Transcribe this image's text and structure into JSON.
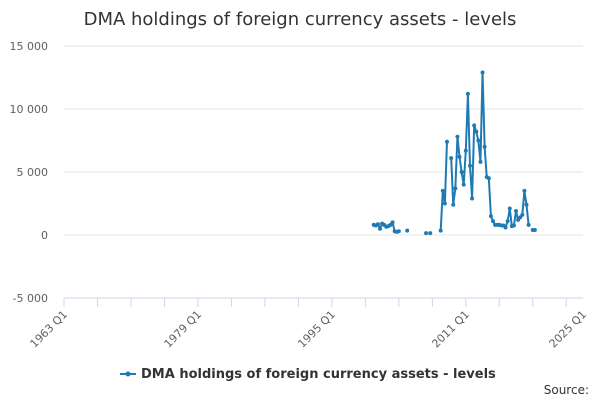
{
  "chart_data": {
    "type": "line",
    "title": "DMA holdings of foreign currency assets - levels",
    "series": [
      {
        "name": "DMA holdings of foreign currency assets - levels",
        "color": "#1f7ab4",
        "points": [
          [
            2000.0,
            800
          ],
          [
            2000.25,
            750
          ],
          [
            2000.5,
            850
          ],
          [
            2000.75,
            500
          ],
          [
            2001.0,
            900
          ],
          [
            2001.25,
            800
          ],
          [
            2001.5,
            650
          ],
          [
            2001.75,
            700
          ],
          [
            2002.0,
            800
          ],
          [
            2002.25,
            1000
          ],
          [
            2002.5,
            300
          ],
          [
            2002.75,
            250
          ],
          [
            2003.0,
            300
          ],
          [
            2004.0,
            350
          ],
          [
            2006.25,
            150
          ],
          [
            2006.75,
            150
          ],
          [
            2008.0,
            350
          ],
          [
            2008.25,
            3500
          ],
          [
            2008.5,
            2500
          ],
          [
            2008.75,
            7400
          ],
          [
            2009.25,
            6100
          ],
          [
            2009.5,
            2400
          ],
          [
            2009.75,
            3700
          ],
          [
            2010.0,
            7800
          ],
          [
            2010.25,
            6200
          ],
          [
            2010.5,
            5000
          ],
          [
            2010.75,
            4000
          ],
          [
            2011.0,
            6700
          ],
          [
            2011.25,
            11200
          ],
          [
            2011.5,
            5500
          ],
          [
            2011.75,
            2900
          ],
          [
            2012.0,
            8700
          ],
          [
            2012.25,
            8200
          ],
          [
            2012.5,
            7500
          ],
          [
            2012.75,
            5800
          ],
          [
            2013.0,
            12900
          ],
          [
            2013.25,
            7000
          ],
          [
            2013.5,
            4600
          ],
          [
            2013.75,
            4500
          ],
          [
            2014.0,
            1500
          ],
          [
            2014.25,
            1100
          ],
          [
            2014.5,
            800
          ],
          [
            2014.75,
            800
          ],
          [
            2015.0,
            800
          ],
          [
            2015.25,
            750
          ],
          [
            2015.5,
            750
          ],
          [
            2015.75,
            600
          ],
          [
            2016.0,
            1100
          ],
          [
            2016.25,
            2100
          ],
          [
            2016.5,
            700
          ],
          [
            2016.75,
            750
          ],
          [
            2017.0,
            1900
          ],
          [
            2017.25,
            1200
          ],
          [
            2017.5,
            1400
          ],
          [
            2017.75,
            1600
          ],
          [
            2018.0,
            3500
          ],
          [
            2018.25,
            2400
          ],
          [
            2018.5,
            800
          ],
          [
            2019.0,
            400
          ],
          [
            2019.25,
            400
          ]
        ]
      }
    ],
    "x_ticks": [
      {
        "label": "1963 Q1",
        "value": 1963
      },
      {
        "label": "1979 Q1",
        "value": 1979
      },
      {
        "label": "1995 Q1",
        "value": 1995
      },
      {
        "label": "2011 Q1",
        "value": 2011
      },
      {
        "label": "2025 Q1",
        "value": 2025
      }
    ],
    "y_ticks": [
      {
        "label": "-5 000",
        "value": -5000
      },
      {
        "label": "0",
        "value": 0
      },
      {
        "label": "5 000",
        "value": 5000
      },
      {
        "label": "10 000",
        "value": 10000
      },
      {
        "label": "15 000",
        "value": 15000
      }
    ],
    "xlim": [
      1963,
      2025
    ],
    "ylim": [
      -5000,
      15000
    ],
    "grid": true,
    "legend_position": "bottom",
    "source_label": "Source:"
  }
}
